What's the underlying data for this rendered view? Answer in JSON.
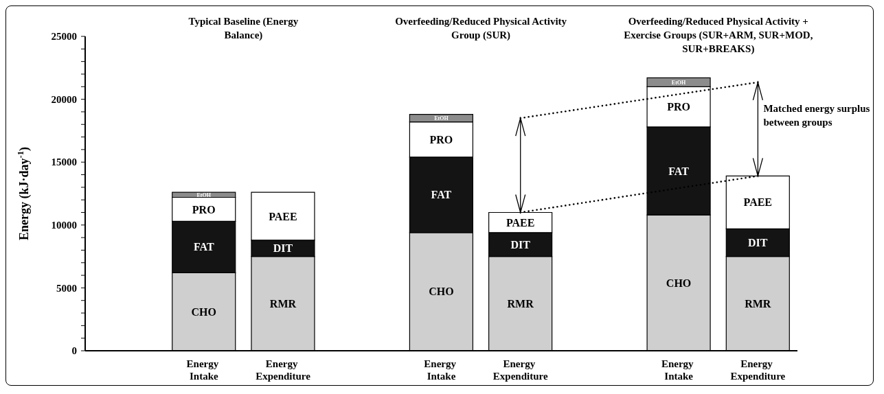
{
  "chart_data": {
    "type": "bar",
    "stacked": true,
    "ylabel": "Energy (kJ·day$^{-1}$)",
    "categories": [
      null,
      "Energy Intake",
      "Energy Expenditure",
      null,
      "Energy Intake",
      "Energy Expenditure",
      null,
      "Energy Intake",
      "Energy Expenditure"
    ],
    "series": [
      {
        "name": "CHO",
        "color": "#cfcfcf",
        "values": [
          null,
          6200,
          null,
          null,
          9400,
          null,
          null,
          10800,
          null
        ]
      },
      {
        "name": "FAT",
        "color": "#141414",
        "values": [
          null,
          4100,
          null,
          null,
          6000,
          null,
          null,
          7000,
          null
        ]
      },
      {
        "name": "PRO",
        "color": "#ffffff",
        "values": [
          null,
          1900,
          null,
          null,
          2800,
          null,
          null,
          3200,
          null
        ]
      },
      {
        "name": "EtOH",
        "color": "#8c8c8c",
        "values": [
          null,
          400,
          null,
          null,
          600,
          null,
          null,
          700,
          null
        ]
      },
      {
        "name": "RMR",
        "color": "#cfcfcf",
        "values": [
          null,
          null,
          7500,
          null,
          null,
          7500,
          null,
          null,
          7500
        ]
      },
      {
        "name": "DIT",
        "color": "#141414",
        "values": [
          null,
          null,
          1300,
          null,
          null,
          1900,
          null,
          null,
          2200
        ]
      },
      {
        "name": "PAEE",
        "color": "#ffffff",
        "values": [
          null,
          null,
          3800,
          null,
          null,
          1600,
          null,
          null,
          4200
        ]
      }
    ],
    "ylim": [
      0,
      25000
    ],
    "yticks": [
      0,
      {
        "value": 1000,
        "label": null
      },
      {
        "value": 2000,
        "label": null
      },
      {
        "value": 3000,
        "label": null
      },
      {
        "value": 4000,
        "label": null
      },
      5000,
      {
        "value": 6000,
        "label": null
      },
      {
        "value": 7000,
        "label": null
      },
      {
        "value": 8000,
        "label": null
      },
      {
        "value": 9000,
        "label": null
      },
      10000,
      {
        "value": 11000,
        "label": null
      },
      {
        "value": 12000,
        "label": null
      },
      {
        "value": 13000,
        "label": null
      },
      {
        "value": 14000,
        "label": null
      },
      15000,
      {
        "value": 16000,
        "label": null
      },
      {
        "value": 17000,
        "label": null
      },
      {
        "value": 18000,
        "label": null
      },
      {
        "value": 19000,
        "label": null
      },
      20000,
      {
        "value": 21000,
        "label": null
      },
      {
        "value": 22000,
        "label": null
      },
      {
        "value": 23000,
        "label": null
      },
      {
        "value": 24000,
        "label": null
      },
      25000
    ],
    "grid": false,
    "annotations": [
      "Typical Baseline (Energy Balance)",
      "Overfeeding/Reduced Physical Activity Group (SUR)",
      "Overfeeding/Reduced Physical Activity + Exercise Groups (SUR+ARM, SUR+MOD, SUR+BREAKS)",
      "Matched energy surplus between groups"
    ]
  }
}
